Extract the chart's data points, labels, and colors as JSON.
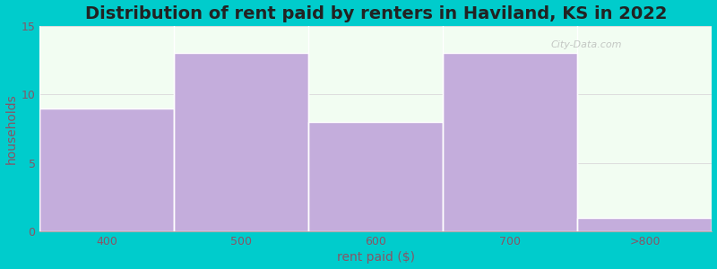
{
  "categories": [
    "400",
    "500",
    "600",
    "700",
    ">800"
  ],
  "values": [
    9,
    13,
    8,
    13,
    1
  ],
  "bar_color": "#C4ADDC",
  "plot_bg_color": "#F2FDF2",
  "figure_bg_color": "#00CCCC",
  "title": "Distribution of rent paid by renters in Haviland, KS in 2022",
  "xlabel": "rent paid ($)",
  "ylabel": "households",
  "ylim": [
    0,
    15
  ],
  "yticks": [
    0,
    5,
    10,
    15
  ],
  "title_fontsize": 14,
  "axis_label_fontsize": 10,
  "tick_fontsize": 9,
  "watermark": "City-Data.com",
  "grid_color": "#dddddd",
  "tick_color": "#885566"
}
